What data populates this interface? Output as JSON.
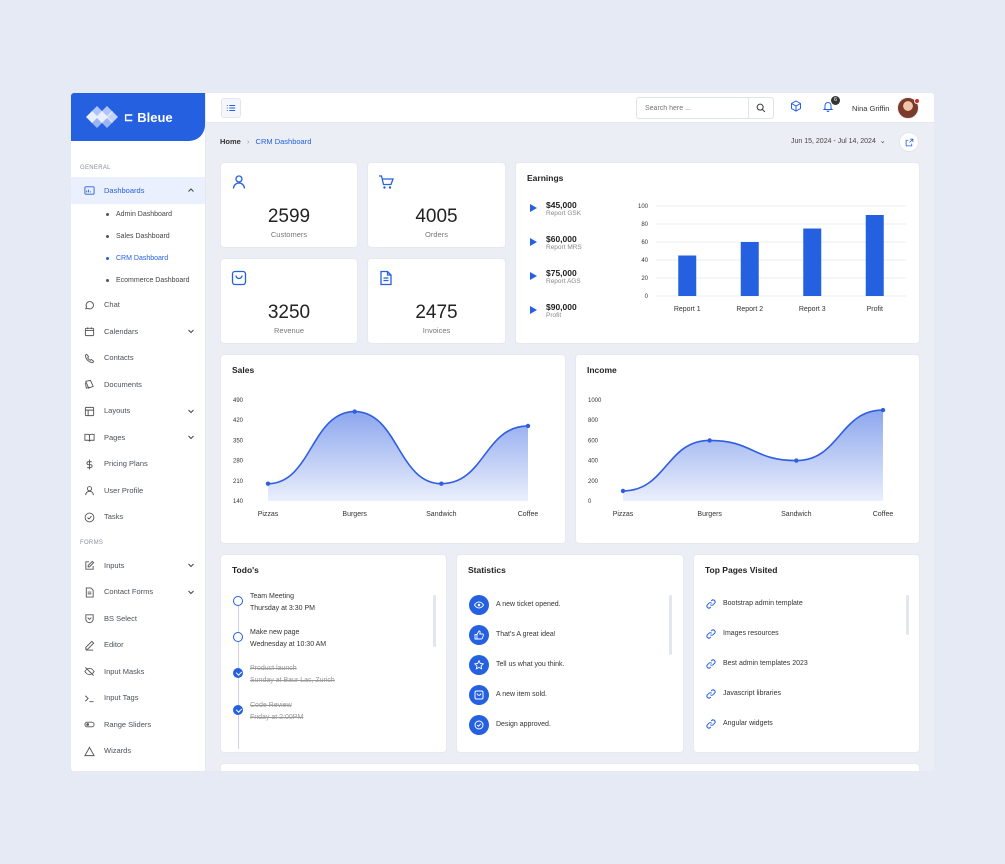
{
  "brand": {
    "name": "Bleue"
  },
  "sidebar": {
    "section_general": "GENERAL",
    "section_forms": "FORMS",
    "dashboards": {
      "label": "Dashboards",
      "items": [
        "Admin Dashboard",
        "Sales Dashboard",
        "CRM Dashboard",
        "Ecommerce Dashboard"
      ]
    },
    "general_items": [
      {
        "label": "Chat",
        "icon": "chat-icon"
      },
      {
        "label": "Calendars",
        "icon": "calendar-icon"
      },
      {
        "label": "Contacts",
        "icon": "phone-icon"
      },
      {
        "label": "Documents",
        "icon": "document-icon"
      },
      {
        "label": "Layouts",
        "icon": "layout-icon"
      },
      {
        "label": "Pages",
        "icon": "book-icon"
      },
      {
        "label": "Pricing Plans",
        "icon": "dollar-icon"
      },
      {
        "label": "User Profile",
        "icon": "user-icon"
      },
      {
        "label": "Tasks",
        "icon": "check-circle-icon"
      }
    ],
    "form_items": [
      {
        "label": "Inputs",
        "icon": "edit-icon"
      },
      {
        "label": "Contact Forms",
        "icon": "form-icon"
      },
      {
        "label": "BS Select",
        "icon": "select-icon"
      },
      {
        "label": "Editor",
        "icon": "pen-icon"
      },
      {
        "label": "Input Masks",
        "icon": "eye-off-icon"
      },
      {
        "label": "Input Tags",
        "icon": "terminal-icon"
      },
      {
        "label": "Range Sliders",
        "icon": "toggle-icon"
      },
      {
        "label": "Wizards",
        "icon": "triangle-icon"
      }
    ]
  },
  "header": {
    "search_placeholder": "Search here ...",
    "notification_count": "6",
    "user_name": "Nina Griffin"
  },
  "breadcrumb": {
    "home": "Home",
    "current": "CRM Dashboard"
  },
  "date_range": "Jun 15, 2024 - Jul 14, 2024",
  "stats": [
    {
      "value": "2599",
      "label": "Customers",
      "icon": "user-icon"
    },
    {
      "value": "4005",
      "label": "Orders",
      "icon": "cart-icon"
    },
    {
      "value": "3250",
      "label": "Revenue",
      "icon": "bag-icon"
    },
    {
      "value": "2475",
      "label": "Invoices",
      "icon": "file-icon"
    }
  ],
  "earnings": {
    "title": "Earnings",
    "rows": [
      {
        "value": "$45,000",
        "label": "Report GSK"
      },
      {
        "value": "$60,000",
        "label": "Report MRS"
      },
      {
        "value": "$75,000",
        "label": "Report AGS"
      },
      {
        "value": "$90,000",
        "label": "Profit"
      }
    ]
  },
  "sales_title": "Sales",
  "income_title": "Income",
  "chart_data": [
    {
      "type": "bar",
      "categories": [
        "Report 1",
        "Report 2",
        "Report 3",
        "Profit"
      ],
      "values": [
        45,
        60,
        75,
        90
      ],
      "ylim": [
        0,
        100
      ],
      "yticks": [
        0,
        20,
        40,
        60,
        80,
        100
      ],
      "color": "#2460e0"
    },
    {
      "type": "area",
      "categories": [
        "Pizzas",
        "Burgers",
        "Sandwich",
        "Coffee"
      ],
      "values": [
        200,
        450,
        200,
        400
      ],
      "ylim": [
        140,
        490
      ],
      "yticks": [
        140,
        210,
        280,
        350,
        420,
        490
      ],
      "color": "#2f5fe0"
    },
    {
      "type": "area",
      "categories": [
        "Pizzas",
        "Burgers",
        "Sandwich",
        "Coffee"
      ],
      "values": [
        100,
        600,
        400,
        900
      ],
      "ylim": [
        0,
        1000
      ],
      "yticks": [
        0,
        200,
        400,
        600,
        800,
        1000
      ],
      "color": "#2f5fe0"
    }
  ],
  "todos": {
    "title": "Todo's",
    "items": [
      {
        "title": "Team Meeting",
        "sub": "Thursday at 3:30 PM",
        "done": false
      },
      {
        "title": "Make new page",
        "sub": "Wednesday at 10:30 AM",
        "done": false
      },
      {
        "title": "Product launch",
        "sub": "Sunday at Baur Lac, Zurich",
        "done": true
      },
      {
        "title": "Code Review",
        "sub": "Friday at 2:00PM",
        "done": true
      }
    ]
  },
  "statistics": {
    "title": "Statistics",
    "items": [
      {
        "text": "A new ticket opened.",
        "icon": "eye-icon"
      },
      {
        "text": "That's A great idea!",
        "icon": "thumbs-up-icon"
      },
      {
        "text": "Tell us what you think.",
        "icon": "star-icon"
      },
      {
        "text": "A new item sold.",
        "icon": "bag-icon"
      },
      {
        "text": "Design approved.",
        "icon": "check-circle-icon"
      }
    ]
  },
  "top_pages": {
    "title": "Top Pages Visited",
    "items": [
      "Bootstrap admin template",
      "Images resources",
      "Best admin templates 2023",
      "Javascript libraries",
      "Angular widgets"
    ]
  }
}
